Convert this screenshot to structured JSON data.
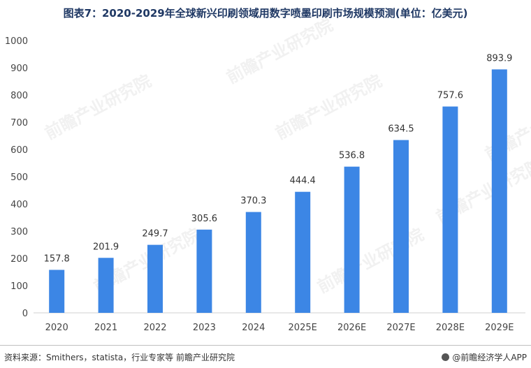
{
  "title": "图表7：2020-2029年全球新兴印刷领域用数字喷墨印刷市场规模预测(单位：亿美元)",
  "source": "资料来源：Smithers，statista，行业专家等 前瞻产业研究院",
  "brand": "@前瞻经济学人APP",
  "watermark": "前瞻产业研究院",
  "colors": {
    "bar": "#3c86e5",
    "axis": "#d0d0d0",
    "title": "#1f3864"
  },
  "chart_data": {
    "type": "bar",
    "title": "图表7：2020-2029年全球新兴印刷领域用数字喷墨印刷市场规模预测(单位：亿美元)",
    "categories": [
      "2020",
      "2021",
      "2022",
      "2023",
      "2024",
      "2025E",
      "2026E",
      "2027E",
      "2028E",
      "2029E"
    ],
    "values": [
      157.8,
      201.9,
      249.7,
      305.6,
      370.3,
      444.4,
      536.8,
      634.5,
      757.6,
      893.9
    ],
    "value_labels": [
      "157.8",
      "201.9",
      "249.7",
      "305.6",
      "370.3",
      "444.4",
      "536.8",
      "634.5",
      "757.6",
      "893.9"
    ],
    "yticks": [
      "0",
      "100",
      "200",
      "300",
      "400",
      "500",
      "600",
      "700",
      "800",
      "900",
      "1000"
    ],
    "ylim": [
      0,
      1000
    ],
    "xlabel": "",
    "ylabel": "",
    "grid": false,
    "legend": "none"
  }
}
